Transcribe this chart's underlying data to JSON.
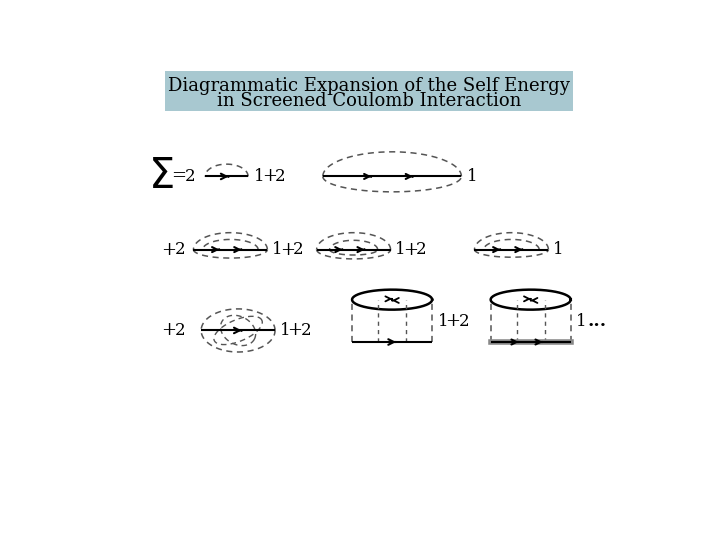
{
  "title_line1": "Diagrammatic Expansion of the Self Energy",
  "title_line2": "in Screened Coulomb Interaction",
  "title_bg": "#a8c8d0",
  "bg_color": "#ffffff",
  "title_fontsize": 13,
  "dashed_color": "#555555",
  "solid_color": "#000000"
}
